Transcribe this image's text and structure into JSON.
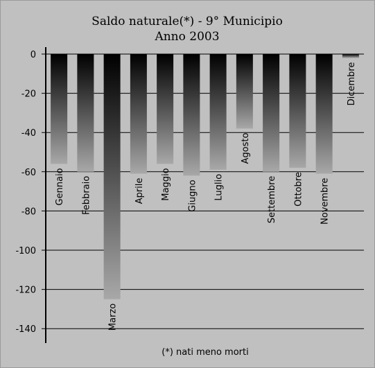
{
  "chart_data": {
    "type": "bar",
    "title": "Saldo naturale(*) - 9° Municipio",
    "subtitle": "Anno 2003",
    "footnote": "(*) nati meno morti",
    "categories": [
      "Gennaio",
      "Febbraio",
      "Marzo",
      "Aprile",
      "Maggio",
      "Giugno",
      "Luglio",
      "Agosto",
      "Settembre",
      "Ottobre",
      "Novembre",
      "Dicembre"
    ],
    "values": [
      -56,
      -60,
      -125,
      -61,
      -56,
      -62,
      -59,
      -38,
      -60,
      -58,
      -61,
      -2
    ],
    "y_ticks": [
      "0",
      "-20",
      "-40",
      "-60",
      "-80",
      "-100",
      "-120",
      "-140"
    ],
    "ylim": [
      -140,
      0
    ],
    "grid": true,
    "legend": "none",
    "colors": {
      "background": "#c0c0c0",
      "bar_top": "#000000",
      "bar_bottom": "#a8a8a8",
      "gridline": "#000000"
    }
  }
}
